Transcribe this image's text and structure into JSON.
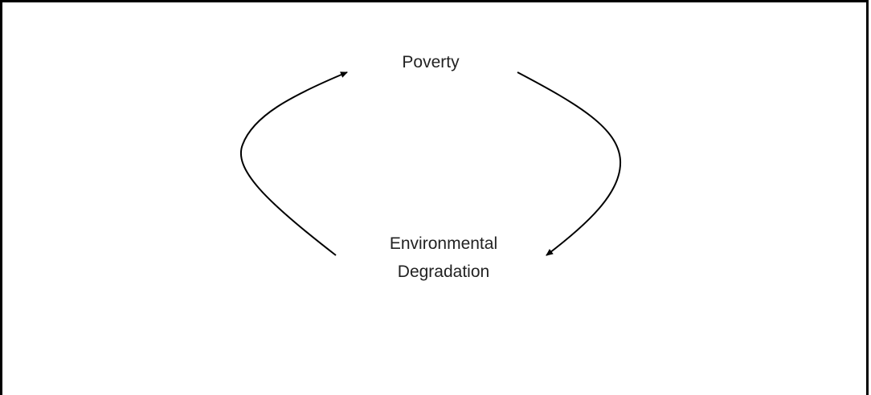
{
  "nodes": [
    {
      "label": "Poverty"
    },
    {
      "label": "Environmental"
    },
    {
      "label": "Degradation"
    }
  ]
}
